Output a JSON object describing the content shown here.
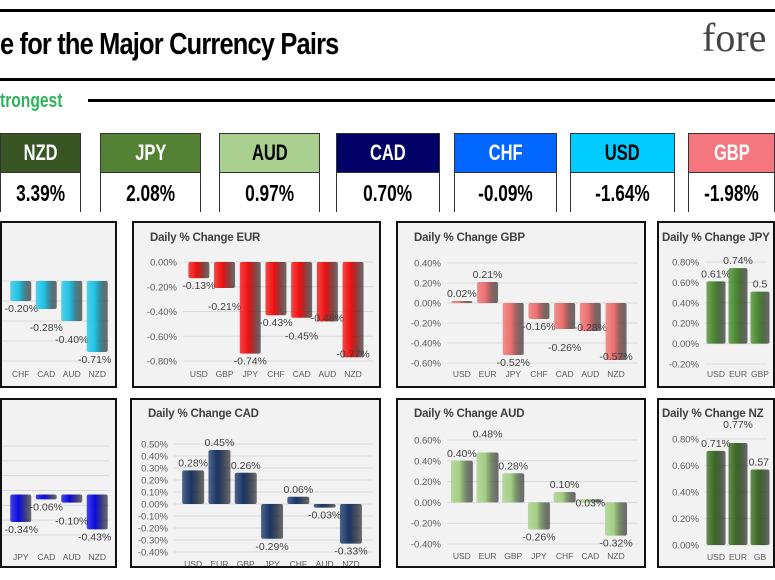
{
  "header": {
    "title": "e for the Major Currency Pairs",
    "logo_text": "fore",
    "section_label": "trongest"
  },
  "currencies": [
    {
      "code": "NZD",
      "value": "3.39%",
      "color": "#375623",
      "text_color": "#ffffff"
    },
    {
      "code": "JPY",
      "value": "2.08%",
      "color": "#548235",
      "text_color": "#ffffff"
    },
    {
      "code": "AUD",
      "value": "0.97%",
      "color": "#a9d08e",
      "text_color": "#000000"
    },
    {
      "code": "CAD",
      "value": "0.70%",
      "color": "#000066",
      "text_color": "#ffffff"
    },
    {
      "code": "CHF",
      "value": "-0.09%",
      "color": "#0066ff",
      "text_color": "#ffffff"
    },
    {
      "code": "USD",
      "value": "-1.64%",
      "color": "#00ccff",
      "text_color": "#000000"
    },
    {
      "code": "GBP",
      "value": "-1.98%",
      "color": "#f4777f",
      "text_color": "#ffffff"
    }
  ],
  "chart_data": [
    {
      "type": "bar",
      "title": "",
      "categories": [
        "CHF",
        "CAD",
        "AUD",
        "NZD"
      ],
      "values": [
        -0.2,
        -0.28,
        -0.4,
        -0.71
      ],
      "labels": [
        "-0.20%",
        "-0.28%",
        "-0.40%",
        "-0.71%"
      ],
      "ylim": [
        -0.8,
        0.0
      ],
      "ticks": [],
      "color": "#1ec3e6"
    },
    {
      "type": "bar",
      "title": "Daily % Change EUR",
      "categories": [
        "USD",
        "GBP",
        "JPY",
        "CHF",
        "CAD",
        "AUD",
        "NZD"
      ],
      "values": [
        -0.13,
        -0.21,
        -0.74,
        -0.43,
        -0.45,
        -0.48,
        -0.77
      ],
      "labels": [
        "-0.13%",
        "-0.21%",
        "-0.74%",
        "-0.43%",
        "-0.45%",
        "-0.48%",
        "-0.77%"
      ],
      "ylim": [
        -0.8,
        0.0
      ],
      "ticks": [
        "0.00%",
        "-0.20%",
        "-0.40%",
        "-0.60%",
        "-0.80%"
      ],
      "color": "#f01010"
    },
    {
      "type": "bar",
      "title": "Daily % Change GBP",
      "categories": [
        "USD",
        "EUR",
        "JPY",
        "CHF",
        "CAD",
        "AUD",
        "NZD"
      ],
      "values": [
        0.02,
        0.21,
        -0.52,
        -0.16,
        -0.26,
        -0.28,
        -0.57
      ],
      "labels": [
        "0.02%",
        "0.21%",
        "-0.52%",
        "-0.16%",
        "-0.26%",
        "-0.28%",
        "-0.57%"
      ],
      "ylim": [
        -0.6,
        0.4
      ],
      "ticks": [
        "0.40%",
        "0.20%",
        "0.00%",
        "-0.20%",
        "-0.40%",
        "-0.60%"
      ],
      "color": "#ee6e6e"
    },
    {
      "type": "bar",
      "title": "Daily % Change JPY",
      "categories": [
        "USD",
        "EUR",
        "GBP"
      ],
      "values": [
        0.61,
        0.74,
        0.51
      ],
      "labels": [
        "0.61%",
        "0.74%",
        "0.5"
      ],
      "ylim": [
        -0.2,
        0.8
      ],
      "ticks": [
        "0.80%",
        "0.60%",
        "0.40%",
        "0.20%",
        "0.00%",
        "-0.20%"
      ],
      "color": "#4a8a30"
    },
    {
      "type": "bar",
      "title": "",
      "categories": [
        "JPY",
        "CAD",
        "AUD",
        "NZD"
      ],
      "values": [
        -0.34,
        -0.06,
        -0.1,
        -0.43
      ],
      "labels": [
        "-0.34%",
        "-0.06%",
        "-0.10%",
        "-0.43%"
      ],
      "ylim": [
        -0.5,
        0.6
      ],
      "ticks": [],
      "color": "#0a0ae0"
    },
    {
      "type": "bar",
      "title": "Daily % Change CAD",
      "categories": [
        "USD",
        "EUR",
        "GBP",
        "JPY",
        "CHF",
        "AUD",
        "NZD"
      ],
      "values": [
        0.28,
        0.45,
        0.26,
        -0.29,
        0.06,
        -0.03,
        -0.33
      ],
      "labels": [
        "0.28%",
        "0.45%",
        "0.26%",
        "-0.29%",
        "0.06%",
        "-0.03%",
        "-0.33%"
      ],
      "ylim": [
        -0.4,
        0.5
      ],
      "ticks": [
        "0.50%",
        "0.40%",
        "0.30%",
        "0.20%",
        "0.10%",
        "0.00%",
        "-0.10%",
        "-0.20%",
        "-0.30%",
        "-0.40%"
      ],
      "color": "#1a3566"
    },
    {
      "type": "bar",
      "title": "Daily % Change AUD",
      "categories": [
        "USD",
        "EUR",
        "GBP",
        "JPY",
        "CHF",
        "CAD",
        "NZD"
      ],
      "values": [
        0.4,
        0.48,
        0.28,
        -0.26,
        0.1,
        0.03,
        -0.32
      ],
      "labels": [
        "0.40%",
        "0.48%",
        "0.28%",
        "-0.26%",
        "0.10%",
        "0.03%",
        "-0.32%"
      ],
      "ylim": [
        -0.4,
        0.6
      ],
      "ticks": [
        "0.60%",
        "0.40%",
        "0.20%",
        "0.00%",
        "-0.20%",
        "-0.40%"
      ],
      "color": "#a3cf85"
    },
    {
      "type": "bar",
      "title": "Daily % Change NZ",
      "categories": [
        "USD",
        "EUR",
        "GB"
      ],
      "values": [
        0.71,
        0.77,
        0.57
      ],
      "labels": [
        "0.71%",
        "0.77%",
        "0.57"
      ],
      "ylim": [
        0.0,
        0.8
      ],
      "ticks": [
        "0.80%",
        "0.60%",
        "0.40%",
        "0.20%",
        "0.00%"
      ],
      "color": "#3b6b22"
    }
  ]
}
